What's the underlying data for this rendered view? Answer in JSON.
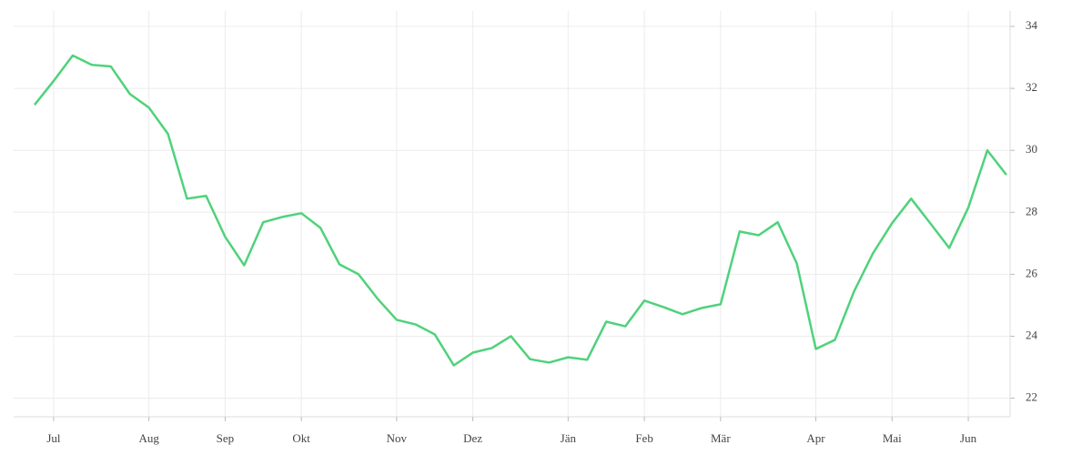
{
  "chart_data": {
    "type": "line",
    "categories": [
      null,
      "Jul",
      null,
      null,
      null,
      null,
      "Aug",
      null,
      null,
      null,
      "Sep",
      null,
      null,
      null,
      "Okt",
      null,
      null,
      null,
      null,
      "Nov",
      null,
      null,
      null,
      "Dez",
      null,
      null,
      null,
      null,
      "Jän",
      null,
      null,
      null,
      "Feb",
      null,
      null,
      null,
      "Mär",
      null,
      null,
      null,
      null,
      "Apr",
      null,
      null,
      null,
      "Mai",
      null,
      null,
      null,
      "Jun",
      null,
      null
    ],
    "series": [
      {
        "color": "#4fd27b",
        "values": [
          31.47,
          32.24,
          33.06,
          32.76,
          32.71,
          31.82,
          31.38,
          30.53,
          28.44,
          28.53,
          27.21,
          26.29,
          27.68,
          27.85,
          27.97,
          27.5,
          26.32,
          26.0,
          25.21,
          24.53,
          24.38,
          24.06,
          23.06,
          23.47,
          23.62,
          24.0,
          23.26,
          23.15,
          23.32,
          23.24,
          24.47,
          24.32,
          25.15,
          24.94,
          24.71,
          24.91,
          25.03,
          27.38,
          27.26,
          27.68,
          26.35,
          23.59,
          23.88,
          25.44,
          26.68,
          27.65,
          28.44,
          27.65,
          26.85,
          28.15,
          30.0,
          29.21
        ]
      }
    ],
    "ylim": [
      21.4,
      34.5
    ],
    "yticks": [
      22,
      24,
      26,
      28,
      30,
      32,
      34
    ],
    "grid": true
  }
}
